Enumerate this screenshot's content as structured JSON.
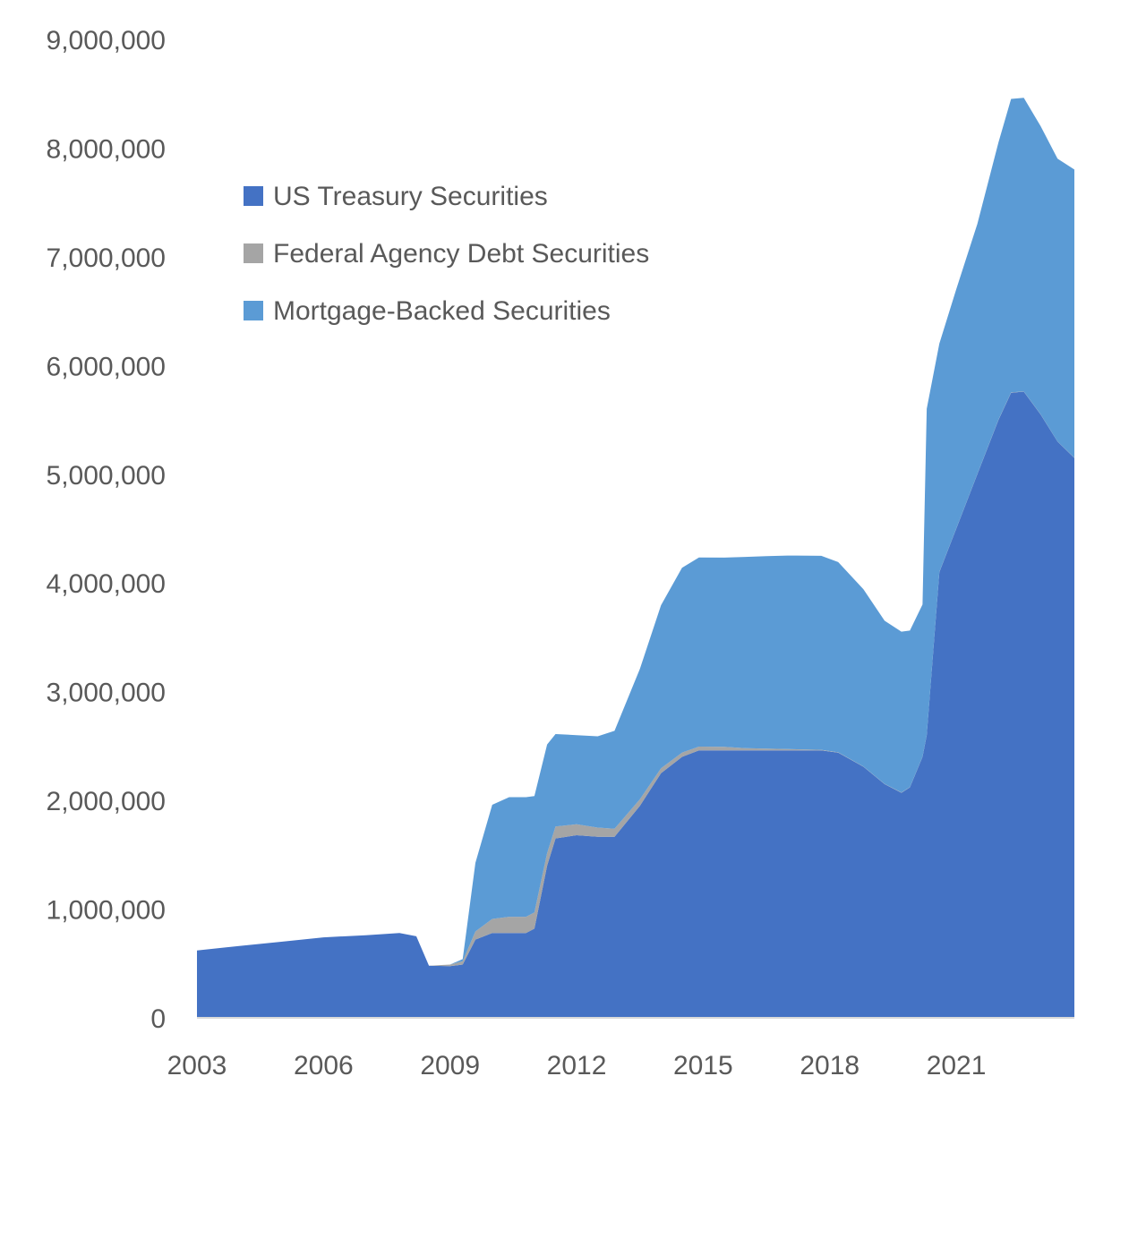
{
  "chart_data": {
    "type": "area",
    "stacked": true,
    "title": "",
    "xlabel": "",
    "ylabel": "",
    "xlim": [
      2003,
      2023.8
    ],
    "ylim": [
      0,
      9000000
    ],
    "x_ticks": [
      "2003",
      "2006",
      "2009",
      "2012",
      "2015",
      "2018",
      "2021"
    ],
    "y_ticks": [
      "0",
      "1,000,000",
      "2,000,000",
      "3,000,000",
      "4,000,000",
      "5,000,000",
      "6,000,000",
      "7,000,000",
      "8,000,000",
      "9,000,000"
    ],
    "grid": false,
    "legend_position": "top-left",
    "x": [
      2003.0,
      2004.0,
      2005.0,
      2006.0,
      2007.0,
      2007.8,
      2008.2,
      2008.5,
      2009.0,
      2009.3,
      2009.6,
      2010.0,
      2010.4,
      2010.8,
      2011.0,
      2011.3,
      2011.5,
      2012.0,
      2012.5,
      2012.9,
      2013.5,
      2014.0,
      2014.5,
      2014.9,
      2015.5,
      2016.0,
      2016.5,
      2017.0,
      2017.8,
      2018.2,
      2018.8,
      2019.3,
      2019.7,
      2019.9,
      2020.2,
      2020.3,
      2020.6,
      2021.0,
      2021.5,
      2022.0,
      2022.3,
      2022.6,
      2023.0,
      2023.4,
      2023.8
    ],
    "series": [
      {
        "name": "US Treasury Securities",
        "color": "#4472C4",
        "values": [
          620000,
          660000,
          700000,
          740000,
          760000,
          780000,
          750000,
          480000,
          475000,
          490000,
          720000,
          780000,
          780000,
          780000,
          820000,
          1400000,
          1650000,
          1680000,
          1665000,
          1665000,
          1950000,
          2250000,
          2400000,
          2460000,
          2460000,
          2460000,
          2460000,
          2460000,
          2460000,
          2440000,
          2310000,
          2150000,
          2070000,
          2120000,
          2400000,
          2600000,
          4100000,
          4500000,
          5000000,
          5500000,
          5750000,
          5760000,
          5550000,
          5300000,
          5150000
        ]
      },
      {
        "name": "Federal Agency Debt Securities",
        "color": "#A5A5A5",
        "values": [
          0,
          0,
          0,
          0,
          0,
          0,
          0,
          0,
          15000,
          30000,
          75000,
          130000,
          150000,
          150000,
          150000,
          115000,
          110000,
          100000,
          85000,
          75000,
          60000,
          45000,
          40000,
          35000,
          33000,
          20000,
          17000,
          12000,
          5000,
          2400,
          2400,
          2400,
          2400,
          2400,
          2400,
          2400,
          2400,
          2400,
          2400,
          2400,
          2400,
          2400,
          2400,
          2400,
          2400
        ]
      },
      {
        "name": "Mortgage-Backed Securities",
        "color": "#5B9BD5",
        "values": [
          0,
          0,
          0,
          0,
          0,
          0,
          0,
          0,
          0,
          20000,
          630000,
          1050000,
          1100000,
          1100000,
          1070000,
          1000000,
          850000,
          820000,
          840000,
          900000,
          1200000,
          1500000,
          1700000,
          1740000,
          1740000,
          1760000,
          1770000,
          1780000,
          1785000,
          1750000,
          1630000,
          1500000,
          1480000,
          1440000,
          1400000,
          3000000,
          2100000,
          2200000,
          2300000,
          2550000,
          2700000,
          2700000,
          2650000,
          2600000,
          2650000
        ]
      }
    ]
  }
}
